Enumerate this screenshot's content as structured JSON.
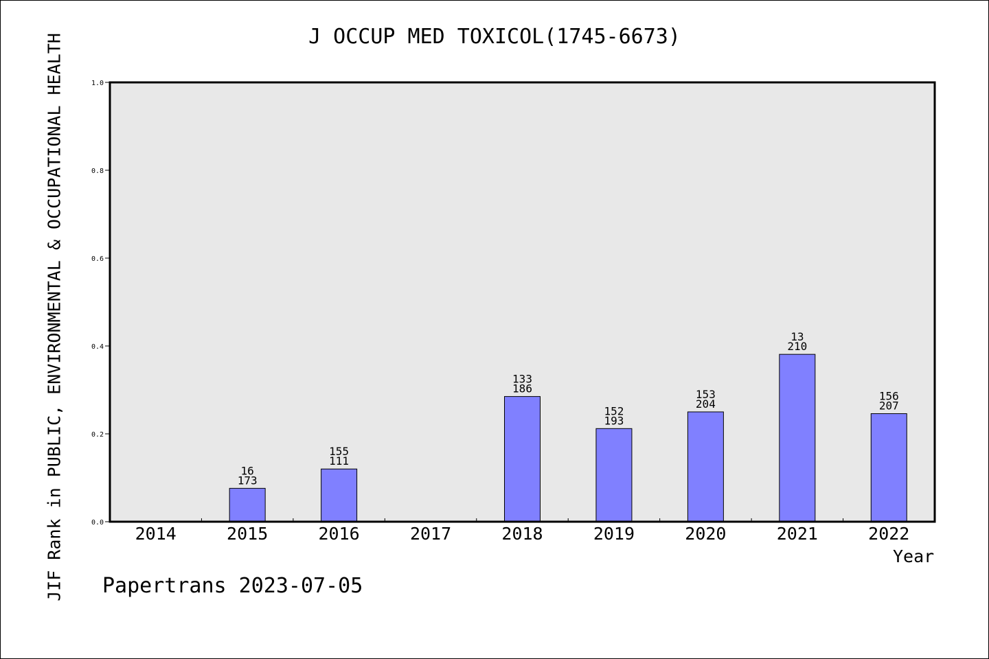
{
  "chart_data": {
    "type": "bar",
    "title": "J OCCUP MED TOXICOL(1745-6673)",
    "xlabel": "Year",
    "ylabel": "JIF Rank in PUBLIC, ENVIRONMENTAL & OCCUPATIONAL HEALTH",
    "ylim": [
      0,
      1.0
    ],
    "yticks": [
      "0.0",
      "0.2",
      "0.4",
      "0.6",
      "0.8",
      "1.0"
    ],
    "categories": [
      "2014",
      "2015",
      "2016",
      "2017",
      "2018",
      "2019",
      "2020",
      "2021",
      "2022"
    ],
    "values": [
      null,
      0.076,
      0.12,
      null,
      0.285,
      0.212,
      0.25,
      0.381,
      0.246
    ],
    "labels_top": [
      "",
      "16",
      "155",
      "",
      "133",
      "152",
      "153",
      "13",
      "156"
    ],
    "labels_bottom": [
      "",
      "173",
      "111",
      "",
      "186",
      "193",
      "204",
      "210",
      "207"
    ],
    "grid": false,
    "bar_color": "#8080ff",
    "plot_background": "#e8e8e8"
  },
  "footer": {
    "credit": "Papertrans 2023-07-05"
  }
}
